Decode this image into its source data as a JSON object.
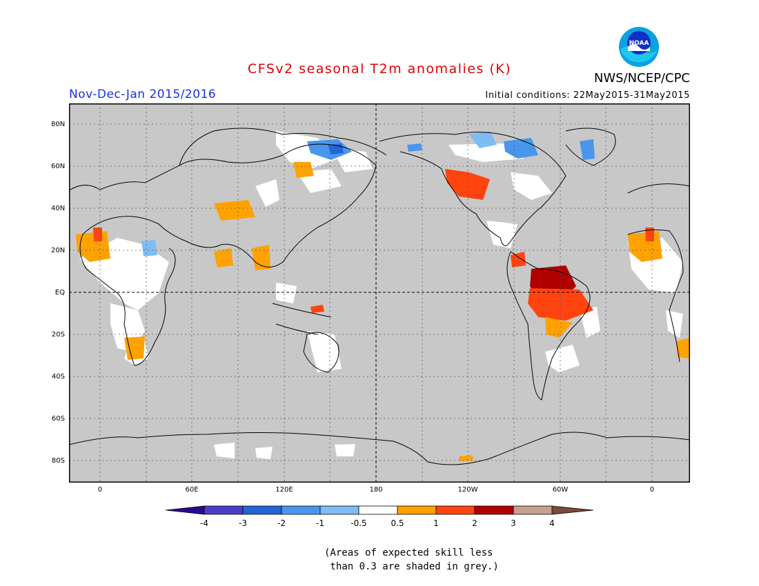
{
  "title": "CFSv2 seasonal T2m anomalies (K)",
  "period": "Nov-Dec-Jan 2015/2016",
  "initial_conditions": "Initial conditions: 22May2015-31May2015",
  "agency": "NWS/NCEP/CPC",
  "logo_text": "NOAA",
  "colors": {
    "title": "#e00000",
    "period": "#1a2ee6",
    "land_grey": "#c8c8c8",
    "neutral": "#ffffff"
  },
  "map": {
    "lat_labels": [
      "80N",
      "60N",
      "40N",
      "20N",
      "EQ",
      "20S",
      "40S",
      "60S",
      "80S"
    ],
    "lon_labels": [
      "0",
      "60E",
      "120E",
      "180",
      "120W",
      "60W",
      "0"
    ],
    "grid": "dotted, 20 degree lat / 30 degree lon",
    "center_meridian": "180"
  },
  "colorbar": {
    "labels": [
      "-4",
      "-3",
      "-2",
      "-1",
      "-0.5",
      "0.5",
      "1",
      "2",
      "3",
      "4"
    ],
    "colors": [
      "#2a0a8c",
      "#4b3ec6",
      "#2266d8",
      "#4a96ec",
      "#7ebcf5",
      "#ffffff",
      "#ffa200",
      "#ff4410",
      "#b00000",
      "#c8a090",
      "#7a4a3a"
    ]
  },
  "note_line1": "(Areas of expected skill less",
  "note_line2": " than 0.3 are shaded in grey.)"
}
